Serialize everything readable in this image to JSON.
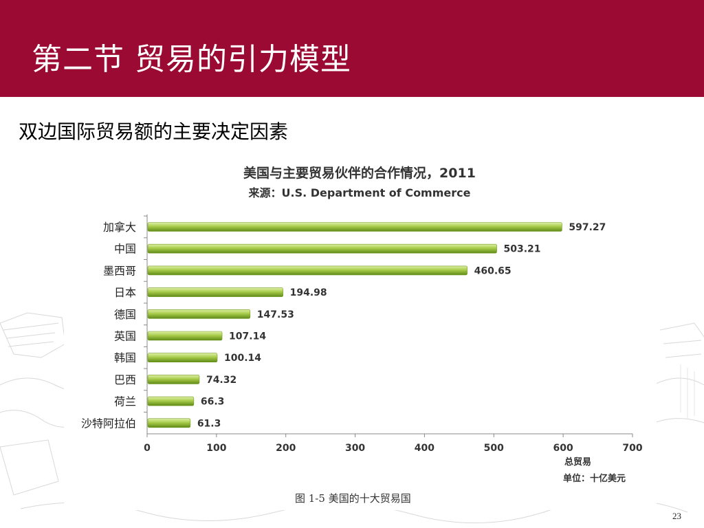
{
  "header": {
    "title": "第二节 贸易的引力模型"
  },
  "subtitle": "双边国际贸易额的主要决定因素",
  "page_number": "23",
  "colors": {
    "header_bg": "#9b0a32",
    "bar_light": "#c6e07a",
    "bar_dark": "#6f9a1e"
  },
  "chart_data": {
    "type": "bar",
    "orientation": "horizontal",
    "title": "美国与主要贸易伙伴的合作情况，2011",
    "subtitle": "来源：U.S. Department of Commerce",
    "categories": [
      "加拿大",
      "中国",
      "墨西哥",
      "日本",
      "德国",
      "英国",
      "韩国",
      "巴西",
      "荷兰",
      "沙特阿拉伯"
    ],
    "values": [
      597.27,
      503.21,
      460.65,
      194.98,
      147.53,
      107.14,
      100.14,
      74.32,
      66.3,
      61.3
    ],
    "value_labels": [
      "597.27",
      "503.21",
      "460.65",
      "194.98",
      "147.53",
      "107.14",
      "100.14",
      "74.32",
      "66.3",
      "61.3"
    ],
    "xlim": [
      0,
      700
    ],
    "xticks": [
      "0",
      "100",
      "200",
      "300",
      "400",
      "500",
      "600",
      "700"
    ],
    "xlabel": "总贸易",
    "unit": "单位：十亿美元",
    "caption": "图 1-5 美国的十大贸易国",
    "grid": false,
    "legend": "none"
  }
}
